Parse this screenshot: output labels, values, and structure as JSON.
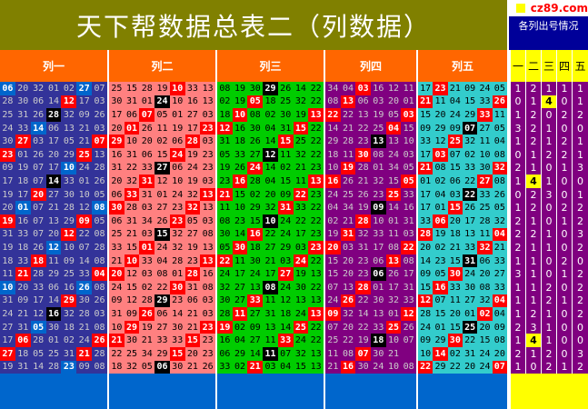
{
  "title": "天下帮数据总表二（列数据）",
  "brand": "cz89.com",
  "stats_title": "各列出号情况",
  "column_headers": [
    "列一",
    "列二",
    "列三",
    "列四",
    "列五"
  ],
  "stat_headers": [
    "一",
    "二",
    "三",
    "四",
    "五"
  ],
  "colors": {
    "col1_bg": "#333399",
    "col2_bg": "#ff8080",
    "col3_bg": "#00cc00",
    "col4_bg": "#800080",
    "col5_bg": "#33cccc",
    "stat_bg": "#800080",
    "bottom_band": "#0066cc",
    "hl_red": "#ff0000",
    "hl_blue": "#0066cc",
    "hl_black": "#000000"
  },
  "rows": [
    [
      "06 20 32 01 02 27 07",
      "25 15 28 19 10 33 13",
      "08 19 30 29 26 14 22",
      "34 04 03 16 12 11 ",
      "17 23 21 09 24 05"
    ],
    [
      "28 30 06 14 12 17 03",
      "30 31 01 24 10 16 13",
      "02 19 05 18 25 32 22",
      "08 13 06 03 20 01 ",
      "21 11 04 15 33 26"
    ],
    [
      "25 31 26 28 32 09 26",
      "17 06 07 05 01 27 03",
      "18 10 08 02 30 19 13",
      "22 22 13 19 05 03 ",
      "15 20 24 29 33 11"
    ],
    [
      "24 33 14 06 13 21 03",
      "20 01 26 11 19 17 23",
      "12 16 30 04 31 15 22",
      "14 21 22 25 04 15 ",
      "09 29 09 07 27 05"
    ],
    [
      "30 27 03 17 05 21 07",
      "29 10 20 02 06 28 03",
      "31 18 26 14 15 25 22",
      "29 28 23 13 13 10 ",
      "33 12 25 32 11 04"
    ],
    [
      "23 01 26 20 29 25 13",
      "16 31 06 15 24 19 23",
      "05 33 27 12 11 32 22",
      "18 11 30 08 24 03 ",
      "17 03 07 02 10 08"
    ],
    [
      "09 19 07 17 10 24 28",
      "31 22 33 27 06 24 23",
      "19 26 24 14 02 21 23",
      "10 19 28 01 34 05 ",
      "21 08 15 33 30 32"
    ],
    [
      "17 18 07 14 33 01 26",
      "20 32 31 12 10 19 03",
      "23 16 28 04 15 11 13",
      "16 26 21 32 15 05 ",
      "01 02 06 22 27 08"
    ],
    [
      "19 17 20 27 30 10 05",
      "06 33 31 01 24 32 13",
      "21 15 02 20 09 22 23",
      "24 25 26 23 25 33 ",
      "17 04 03 22 33 26"
    ],
    [
      "20 01 07 21 28 12 08",
      "30 28 03 27 23 32 13",
      "11 10 29 32 31 33 22",
      "04 34 19 09 14 16 ",
      "17 01 15 26 25 05"
    ],
    [
      "19 16 07 13 29 09 05",
      "06 31 34 26 23 05 03",
      "08 23 15 10 24 22 22",
      "02 21 28 10 01 31 ",
      "33 06 20 17 28 32"
    ],
    [
      "31 33 07 20 12 22 08",
      "25 21 03 15 32 27 08",
      "30 14 16 22 24 17 23",
      "19 31 32 33 11 03 ",
      "28 19 18 13 11 04"
    ],
    [
      "19 18 26 12 10 07 28",
      "33 15 01 24 32 19 13",
      "05 30 18 27 29 03 23",
      "20 03 31 17 08 22 ",
      "20 02 21 33 32 21"
    ],
    [
      "18 33 18 11 09 14 08",
      "21 10 33 04 28 23 13",
      "22 11 30 21 03 24 22",
      "15 20 23 06 13 08 ",
      "14 23 15 31 06 33"
    ],
    [
      "11 21 28 29 25 33 04",
      "20 12 03 08 01 28 16",
      "24 17 24 17 27 19 13",
      "15 20 23 06 26 17 ",
      "09 05 30 24 20 27"
    ],
    [
      "10 20 33 06 16 26 08",
      "24 15 02 22 30 31 08",
      "32 27 13 08 24 30 22",
      "07 13 28 01 17 31 ",
      "15 16 33 30 08 33"
    ],
    [
      "31 09 17 14 29 30 26",
      "09 12 28 29 23 06 03",
      "30 27 33 11 12 13 13",
      "24 26 22 30 32 33 ",
      "12 07 11 27 32 04"
    ],
    [
      "24 21 12 16 32 28 03",
      "31 09 26 06 14 21 03",
      "28 11 27 31 18 24 13",
      "09 32 14 13 01 12 ",
      "28 15 20 01 02 04"
    ],
    [
      "27 31 05 30 18 21 08",
      "10 29 19 27 30 21 23",
      "19 02 09 13 14 25 22",
      "07 20 22 33 25 26 ",
      "24 01 15 25 20 09"
    ],
    [
      "17 06 28 01 02 24 26",
      "21 30 21 33 33 15 23",
      "16 04 27 11 33 24 22",
      "25 22 19 18 10 07 ",
      "09 29 30 22 15 08"
    ],
    [
      "27 18 05 25 31 21 28",
      "22 25 34 29 15 20 23",
      "06 29 14 11 07 32 13",
      "11 08 07 30 21 ",
      "10 14 02 31 24 20"
    ],
    [
      "19 31 14 28 23 09 08",
      "18 32 05 06 30 21 26",
      "33 02 21 03 04 15 13",
      "21 16 30 24 10 08 ",
      "22 29 22 20 24 07"
    ]
  ],
  "stats": [
    [
      1,
      2,
      1,
      1,
      1
    ],
    [
      0,
      1,
      4,
      0,
      1
    ],
    [
      1,
      2,
      0,
      2,
      2
    ],
    [
      3,
      2,
      1,
      0,
      0
    ],
    [
      1,
      2,
      1,
      2,
      1
    ],
    [
      0,
      1,
      2,
      2,
      1
    ],
    [
      2,
      1,
      0,
      1,
      3
    ],
    [
      1,
      4,
      1,
      0,
      0
    ],
    [
      0,
      2,
      3,
      0,
      1
    ],
    [
      1,
      2,
      0,
      2,
      2
    ],
    [
      2,
      1,
      0,
      1,
      2
    ],
    [
      2,
      2,
      1,
      0,
      3
    ],
    [
      2,
      1,
      1,
      0,
      2
    ],
    [
      1,
      1,
      0,
      2,
      0
    ],
    [
      3,
      1,
      0,
      1,
      2
    ],
    [
      1,
      1,
      2,
      0,
      2
    ],
    [
      1,
      1,
      2,
      1,
      2
    ],
    [
      1,
      2,
      1,
      0,
      2
    ],
    [
      2,
      3,
      1,
      0,
      0
    ],
    [
      1,
      4,
      1,
      0,
      0
    ],
    [
      2,
      1,
      2,
      0,
      3
    ],
    [
      1,
      0,
      2,
      1,
      2
    ]
  ]
}
